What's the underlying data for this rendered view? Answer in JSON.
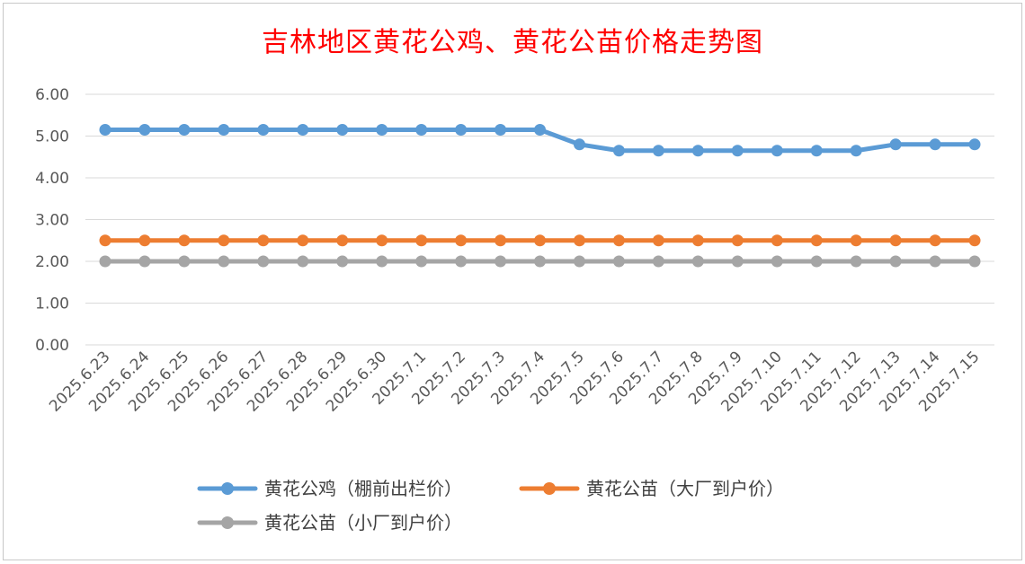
{
  "chart_data": {
    "type": "line",
    "title": "吉林地区黄花公鸡、黄花公苗价格走势图",
    "xlabel": "",
    "ylabel": "",
    "ylim": [
      0,
      6
    ],
    "yticks": [
      "0.00",
      "1.00",
      "2.00",
      "3.00",
      "4.00",
      "5.00",
      "6.00"
    ],
    "grid": true,
    "legend_position": "bottom",
    "categories": [
      "2025.6.23",
      "2025.6.24",
      "2025.6.25",
      "2025.6.26",
      "2025.6.27",
      "2025.6.28",
      "2025.6.29",
      "2025.6.30",
      "2025.7.1",
      "2025.7.2",
      "2025.7.3",
      "2025.7.4",
      "2025.7.5",
      "2025.7.6",
      "2025.7.7",
      "2025.7.8",
      "2025.7.9",
      "2025.7.10",
      "2025.7.11",
      "2025.7.12",
      "2025.7.13",
      "2025.7.14",
      "2025.7.15"
    ],
    "series": [
      {
        "name": "黄花公鸡（棚前出栏价）",
        "color": "#5b9bd5",
        "values": [
          5.15,
          5.15,
          5.15,
          5.15,
          5.15,
          5.15,
          5.15,
          5.15,
          5.15,
          5.15,
          5.15,
          5.15,
          4.8,
          4.65,
          4.65,
          4.65,
          4.65,
          4.65,
          4.65,
          4.65,
          4.8,
          4.8,
          4.8
        ]
      },
      {
        "name": "黄花公苗（大厂到户价）",
        "color": "#ed7d31",
        "values": [
          2.5,
          2.5,
          2.5,
          2.5,
          2.5,
          2.5,
          2.5,
          2.5,
          2.5,
          2.5,
          2.5,
          2.5,
          2.5,
          2.5,
          2.5,
          2.5,
          2.5,
          2.5,
          2.5,
          2.5,
          2.5,
          2.5,
          2.5
        ]
      },
      {
        "name": "黄花公苗（小厂到户价）",
        "color": "#a5a5a5",
        "values": [
          2.0,
          2.0,
          2.0,
          2.0,
          2.0,
          2.0,
          2.0,
          2.0,
          2.0,
          2.0,
          2.0,
          2.0,
          2.0,
          2.0,
          2.0,
          2.0,
          2.0,
          2.0,
          2.0,
          2.0,
          2.0,
          2.0,
          2.0
        ]
      }
    ]
  }
}
